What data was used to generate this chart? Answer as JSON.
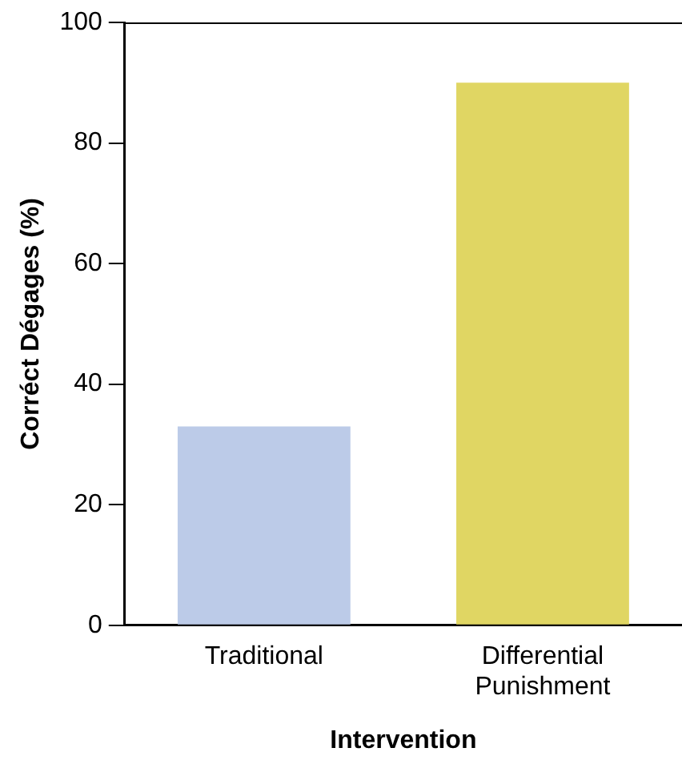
{
  "chart_data": {
    "type": "bar",
    "xlabel": "Intervention",
    "ylabel": "Corréct Dégages (%)",
    "categories": [
      "Traditional",
      "Differential Punishment"
    ],
    "values": [
      33,
      90
    ],
    "colors": [
      "#bccbe8",
      "#e0d663"
    ],
    "ylim": [
      0,
      100
    ],
    "yticks": [
      0,
      20,
      40,
      60,
      80,
      100
    ],
    "grid": false,
    "legend": false
  }
}
